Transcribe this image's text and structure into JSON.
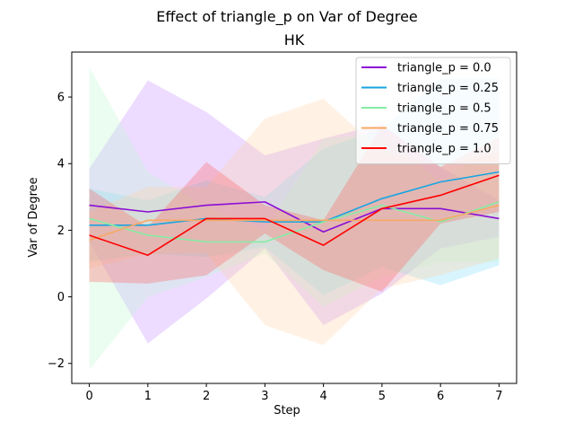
{
  "chart_data": {
    "type": "line",
    "title": "Effect of triangle_p on  Var of Degree",
    "subtitle": "HK",
    "xlabel": "Step",
    "ylabel": "Var of Degree",
    "x": [
      0,
      1,
      2,
      3,
      4,
      5,
      6,
      7
    ],
    "xlim": [
      -0.3,
      7.3
    ],
    "ylim": [
      -2.6,
      7.35
    ],
    "xticks": [
      0,
      1,
      2,
      3,
      4,
      5,
      6,
      7
    ],
    "yticks": [
      -2,
      0,
      2,
      4,
      6
    ],
    "grid": false,
    "legend_position": "top-right",
    "series": [
      {
        "name": "triangle_p = 0.0",
        "color": "#8a0ed6",
        "band_color": "#c58cff",
        "values": [
          2.75,
          2.55,
          2.75,
          2.85,
          1.95,
          2.65,
          2.65,
          2.35
        ],
        "lower": [
          1.65,
          -1.4,
          -0.05,
          1.45,
          -0.85,
          0.1,
          1.45,
          1.8
        ],
        "upper": [
          3.85,
          6.5,
          5.55,
          4.25,
          4.75,
          5.2,
          3.9,
          2.9
        ]
      },
      {
        "name": "triangle_p = 0.25",
        "color": "#1aa5e0",
        "band_color": "#7fd9f7",
        "values": [
          2.15,
          2.15,
          2.35,
          2.25,
          2.25,
          2.95,
          3.45,
          3.75
        ],
        "lower": [
          1.05,
          1.3,
          1.2,
          1.5,
          0.05,
          0.9,
          0.35,
          0.95
        ],
        "upper": [
          3.25,
          2.9,
          3.5,
          3.0,
          4.45,
          5.05,
          6.55,
          6.55
        ]
      },
      {
        "name": "triangle_p = 0.5",
        "color": "#85eda5",
        "band_color": "#bdfad0",
        "values": [
          2.35,
          1.85,
          1.65,
          1.65,
          2.25,
          2.75,
          2.25,
          2.85
        ],
        "lower": [
          -2.2,
          0.0,
          0.6,
          1.3,
          -0.3,
          0.6,
          1.05,
          1.05
        ],
        "upper": [
          6.9,
          3.75,
          2.7,
          2.0,
          4.75,
          4.9,
          3.45,
          4.65
        ]
      },
      {
        "name": "triangle_p = 0.75",
        "color": "#f7a964",
        "band_color": "#ffd2a6",
        "values": [
          1.7,
          2.3,
          2.3,
          2.3,
          2.3,
          2.3,
          2.3,
          2.75
        ],
        "lower": [
          0.85,
          1.3,
          1.3,
          -0.85,
          -1.45,
          0.25,
          0.65,
          1.15
        ],
        "upper": [
          2.55,
          3.3,
          3.3,
          5.35,
          5.95,
          4.35,
          3.95,
          4.35
        ]
      },
      {
        "name": "triangle_p = 1.0",
        "color": "#ff0000",
        "band_color": "#ff5a5a",
        "values": [
          1.85,
          1.25,
          2.35,
          2.35,
          1.55,
          2.65,
          3.05,
          3.65
        ],
        "lower": [
          0.45,
          0.4,
          0.65,
          1.9,
          0.8,
          0.15,
          2.2,
          2.55
        ],
        "upper": [
          3.25,
          2.1,
          4.05,
          2.75,
          2.3,
          5.15,
          3.9,
          4.8
        ]
      }
    ]
  }
}
